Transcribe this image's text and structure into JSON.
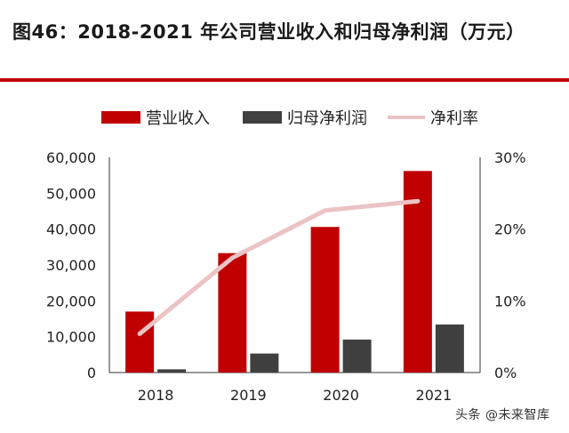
{
  "title": "图46：2018-2021 年公司营业收入和归母净利润（万元）",
  "watermark": "头条 @未来智库",
  "colors": {
    "revenue": "#C00000",
    "net_profit": "#404040",
    "net_margin": "#EBC3C5",
    "divider": "#C00000",
    "axis": "#333333"
  },
  "chart_data": {
    "type": "bar",
    "categories": [
      "2018",
      "2019",
      "2020",
      "2021"
    ],
    "series": [
      {
        "name": "营业收入",
        "type": "bar",
        "axis": "left",
        "values": [
          17000,
          33300,
          40600,
          56200
        ]
      },
      {
        "name": "归母净利润",
        "type": "bar",
        "axis": "left",
        "values": [
          900,
          5300,
          9200,
          13400
        ]
      },
      {
        "name": "净利率",
        "type": "line",
        "axis": "right",
        "values": [
          0.054,
          0.16,
          0.226,
          0.239
        ]
      }
    ],
    "y_left": {
      "lim": [
        0,
        60000
      ],
      "ticks": [
        "0",
        "10,000",
        "20,000",
        "30,000",
        "40,000",
        "50,000",
        "60,000"
      ]
    },
    "y_right": {
      "lim": [
        0,
        0.3
      ],
      "ticks": [
        "0%",
        "10%",
        "20%",
        "30%"
      ]
    },
    "legend_position": "top",
    "grid": false
  }
}
